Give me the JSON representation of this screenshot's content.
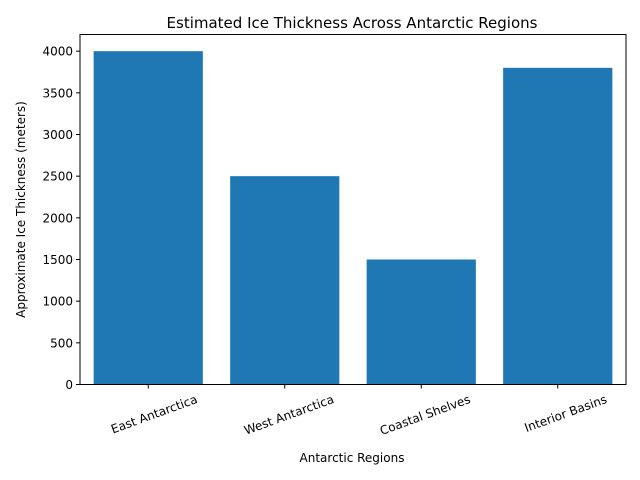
{
  "chart_data": {
    "type": "bar",
    "title": "Estimated Ice Thickness Across Antarctic Regions",
    "xlabel": "Antarctic Regions",
    "ylabel": "Approximate Ice Thickness (meters)",
    "categories": [
      "East Antarctica",
      "West Antarctica",
      "Coastal Shelves",
      "Interior Basins"
    ],
    "values": [
      4000,
      2500,
      1500,
      3800
    ],
    "ylim": [
      0,
      4200
    ],
    "yticks": [
      0,
      500,
      1000,
      1500,
      2000,
      2500,
      3000,
      3500,
      4000
    ],
    "bar_color": "#1f77b4",
    "grid": false,
    "xtick_rotation_deg": 20
  }
}
